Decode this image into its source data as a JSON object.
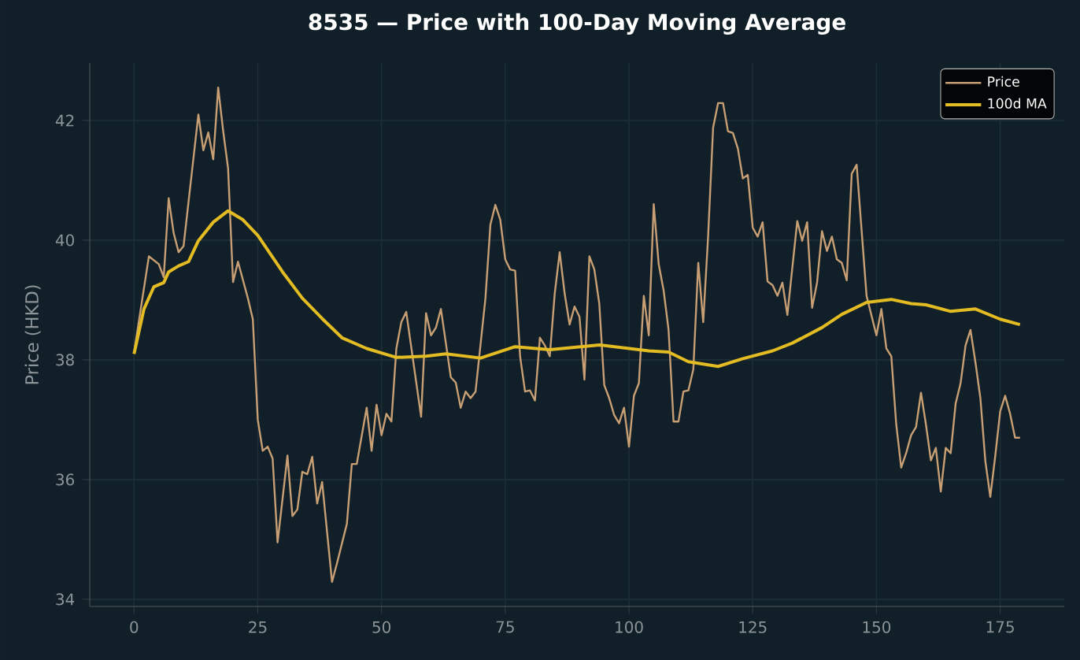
{
  "chart_data": {
    "type": "line",
    "title": "8535 — Price with 100-Day Moving Average",
    "ylabel": "Price (HKD)",
    "xlim": [
      -8.95,
      187.95
    ],
    "ylim": [
      33.88,
      42.96
    ],
    "xticks": [
      0,
      25,
      50,
      75,
      100,
      125,
      150,
      175
    ],
    "yticks": [
      34,
      36,
      38,
      40,
      42
    ],
    "grid": true,
    "legend": "top right",
    "series": [
      {
        "name": "Price",
        "color": "#c89f74",
        "x": [
          0,
          3,
          5,
          6,
          7,
          8,
          9,
          10,
          13,
          14,
          15,
          16,
          17,
          18,
          19,
          20,
          21,
          23,
          24,
          25,
          26,
          27,
          28,
          29,
          31,
          32,
          33,
          34,
          35,
          36,
          37,
          38,
          40,
          41,
          43,
          44,
          45,
          47,
          48,
          49,
          50,
          51,
          52,
          53,
          54,
          55,
          58,
          59,
          60,
          61,
          62,
          64,
          65,
          66,
          67,
          68,
          69,
          71,
          72,
          73,
          74,
          75,
          76,
          77,
          78,
          79,
          80,
          81,
          82,
          83,
          84,
          85,
          86,
          87,
          88,
          89,
          90,
          91,
          92,
          93,
          94,
          95,
          96,
          97,
          98,
          99,
          100,
          101,
          102,
          103,
          104,
          105,
          106,
          107,
          108,
          109,
          110,
          111,
          112,
          113,
          114,
          115,
          116,
          117,
          118,
          119,
          120,
          121,
          122,
          123,
          124,
          125,
          126,
          127,
          128,
          129,
          130,
          131,
          132,
          134,
          135,
          136,
          137,
          138,
          139,
          140,
          141,
          142,
          143,
          144,
          145,
          146,
          148,
          150,
          151,
          152,
          153,
          154,
          155,
          156,
          157,
          158,
          159,
          160,
          161,
          162,
          163,
          164,
          165,
          166,
          167,
          168,
          169,
          170,
          171,
          172,
          173,
          174,
          175,
          176,
          177,
          178,
          179
        ],
        "values": [
          38.12,
          39.73,
          39.6,
          39.38,
          40.7,
          40.12,
          39.8,
          39.9,
          42.1,
          41.5,
          41.8,
          41.35,
          42.55,
          41.83,
          41.2,
          39.3,
          39.64,
          39.03,
          38.68,
          37.0,
          36.48,
          36.55,
          36.35,
          34.95,
          36.4,
          35.39,
          35.5,
          36.13,
          36.09,
          36.38,
          35.6,
          35.96,
          34.29,
          34.6,
          35.26,
          36.26,
          36.26,
          37.2,
          36.48,
          37.25,
          36.74,
          37.1,
          36.97,
          38.19,
          38.63,
          38.8,
          37.05,
          38.78,
          38.41,
          38.54,
          38.85,
          37.71,
          37.62,
          37.2,
          37.47,
          37.36,
          37.47,
          39.03,
          40.26,
          40.59,
          40.34,
          39.68,
          39.51,
          39.49,
          38.06,
          37.47,
          37.49,
          37.32,
          38.37,
          38.24,
          38.06,
          39.11,
          39.8,
          39.11,
          38.59,
          38.89,
          38.72,
          37.67,
          39.73,
          39.51,
          38.94,
          37.58,
          37.36,
          37.08,
          36.94,
          37.2,
          36.55,
          37.4,
          37.61,
          39.07,
          38.41,
          40.6,
          39.6,
          39.16,
          38.5,
          36.97,
          36.97,
          37.47,
          37.49,
          37.84,
          39.62,
          38.63,
          40.08,
          41.88,
          42.29,
          42.29,
          41.82,
          41.79,
          41.53,
          41.03,
          41.09,
          40.21,
          40.06,
          40.3,
          39.31,
          39.25,
          39.07,
          39.29,
          38.75,
          40.32,
          39.99,
          40.3,
          38.87,
          39.29,
          40.15,
          39.82,
          40.06,
          39.68,
          39.62,
          39.33,
          41.11,
          41.26,
          39.07,
          38.41,
          38.85,
          38.19,
          38.06,
          36.92,
          36.2,
          36.44,
          36.74,
          36.88,
          37.45,
          36.92,
          36.32,
          36.53,
          35.8,
          36.53,
          36.44,
          37.27,
          37.61,
          38.24,
          38.5,
          37.96,
          37.36,
          36.31,
          35.71,
          36.39,
          37.14,
          37.4,
          37.1,
          36.7,
          36.7
        ]
      },
      {
        "name": "100d MA",
        "color": "#e3bb22",
        "x": [
          0,
          2,
          4,
          6,
          7,
          9,
          11,
          13,
          16,
          19,
          22,
          25,
          30,
          34,
          38,
          42,
          47,
          53,
          59,
          63,
          70,
          77,
          84,
          94,
          104,
          108,
          112,
          118,
          123,
          129,
          133,
          139,
          143,
          148,
          153,
          157,
          160,
          165,
          170,
          175,
          179
        ],
        "values": [
          38.1,
          38.85,
          39.22,
          39.29,
          39.47,
          39.57,
          39.64,
          39.99,
          40.3,
          40.49,
          40.34,
          40.08,
          39.47,
          39.03,
          38.69,
          38.37,
          38.19,
          38.04,
          38.06,
          38.1,
          38.03,
          38.22,
          38.17,
          38.25,
          38.15,
          38.13,
          37.97,
          37.89,
          38.02,
          38.15,
          38.28,
          38.54,
          38.76,
          38.96,
          39.01,
          38.94,
          38.92,
          38.81,
          38.85,
          38.68,
          38.59
        ]
      }
    ]
  }
}
